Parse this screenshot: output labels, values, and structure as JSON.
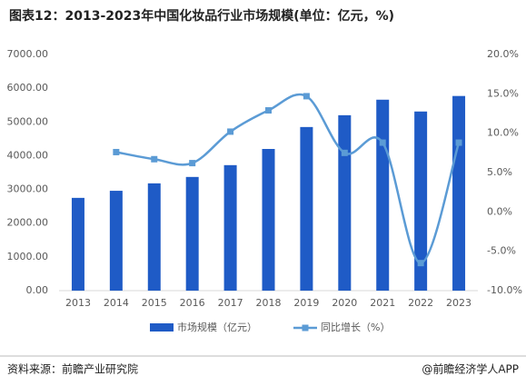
{
  "chart_data": {
    "type": "bar_line",
    "title": "图表12：2013-2023年中国化妆品行业市场规模(单位：亿元，%)",
    "categories": [
      "2013",
      "2014",
      "2015",
      "2016",
      "2017",
      "2018",
      "2019",
      "2020",
      "2021",
      "2022",
      "2023"
    ],
    "series": [
      {
        "name": "市场规模（亿元）",
        "type": "bar",
        "color": "#1f5bc6",
        "values": [
          2750,
          2960,
          3180,
          3370,
          3720,
          4200,
          4850,
          5200,
          5660,
          5310,
          5770
        ]
      },
      {
        "name": "同比增长（%）",
        "type": "line",
        "axis": "y2",
        "color": "#5b9bd5",
        "values": [
          null,
          7.6,
          6.7,
          6.2,
          10.2,
          12.9,
          14.7,
          7.5,
          8.8,
          -6.5,
          8.8
        ]
      }
    ],
    "ylim": [
      0,
      7000
    ],
    "yticks": [
      {
        "value": 0,
        "label": "0.00"
      },
      {
        "value": 1000,
        "label": "1000.00"
      },
      {
        "value": 2000,
        "label": "2000.00"
      },
      {
        "value": 3000,
        "label": "3000.00"
      },
      {
        "value": 4000,
        "label": "4000.00"
      },
      {
        "value": 5000,
        "label": "5000.00"
      },
      {
        "value": 6000,
        "label": "6000.00"
      },
      {
        "value": 7000,
        "label": "7000.00"
      }
    ],
    "y2lim": [
      -10,
      20
    ],
    "y2ticks": [
      {
        "value": -10,
        "label": "-10.0%"
      },
      {
        "value": -5,
        "label": "-5.0%"
      },
      {
        "value": 0,
        "label": "0.0%"
      },
      {
        "value": 5,
        "label": "5.0%"
      },
      {
        "value": 10,
        "label": "10.0%"
      },
      {
        "value": 15,
        "label": "15.0%"
      },
      {
        "value": 20,
        "label": "20.0%"
      }
    ],
    "source": "资料来源：前瞻产业研究院",
    "credit": "@前瞻经济学人APP"
  }
}
